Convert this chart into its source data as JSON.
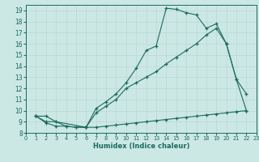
{
  "xlabel": "Humidex (Indice chaleur)",
  "bg_color": "#cce8e4",
  "line_color": "#1a6b5e",
  "grid_color": "#b8d8d4",
  "xlim": [
    0,
    23
  ],
  "ylim": [
    8,
    19.5
  ],
  "yticks": [
    8,
    9,
    10,
    11,
    12,
    13,
    14,
    15,
    16,
    17,
    18,
    19
  ],
  "xticks": [
    0,
    1,
    2,
    3,
    4,
    5,
    6,
    7,
    8,
    9,
    10,
    11,
    12,
    13,
    14,
    15,
    16,
    17,
    18,
    19,
    20,
    21,
    22,
    23
  ],
  "line1_x": [
    1,
    2,
    3,
    6,
    7,
    8,
    9,
    10,
    11,
    12,
    13,
    14,
    15,
    16,
    17,
    18,
    19,
    20,
    21,
    22
  ],
  "line1_y": [
    9.5,
    9.5,
    9.0,
    8.5,
    10.2,
    10.8,
    11.5,
    12.5,
    13.8,
    15.4,
    15.8,
    19.2,
    19.1,
    18.8,
    18.6,
    17.4,
    17.8,
    16.0,
    12.8,
    11.5
  ],
  "line2_x": [
    1,
    2,
    3,
    4,
    5,
    6,
    7,
    8,
    9,
    10,
    11,
    12,
    13,
    14,
    15,
    16,
    17,
    18,
    19,
    20,
    21,
    22
  ],
  "line2_y": [
    9.5,
    9.0,
    9.0,
    8.6,
    8.5,
    8.5,
    9.8,
    10.4,
    11.0,
    12.0,
    12.5,
    13.0,
    13.5,
    14.2,
    14.8,
    15.4,
    16.0,
    16.8,
    17.4,
    16.0,
    12.8,
    10.0
  ],
  "line3_x": [
    1,
    2,
    3,
    4,
    5,
    6,
    7,
    8,
    9,
    10,
    11,
    12,
    13,
    14,
    15,
    16,
    17,
    18,
    19,
    20,
    21,
    22
  ],
  "line3_y": [
    9.5,
    8.9,
    8.6,
    8.6,
    8.5,
    8.5,
    8.5,
    8.6,
    8.7,
    8.8,
    8.9,
    9.0,
    9.1,
    9.2,
    9.3,
    9.4,
    9.5,
    9.6,
    9.7,
    9.8,
    9.9,
    10.0
  ]
}
